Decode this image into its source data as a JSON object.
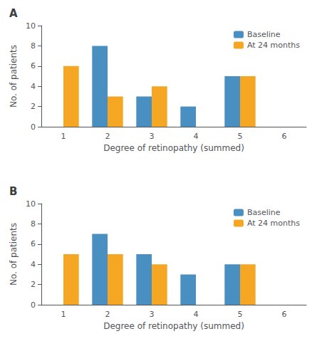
{
  "chart_data": [
    {
      "type": "bar",
      "title": "A",
      "categories": [
        "1",
        "2",
        "3",
        "4",
        "5",
        "6"
      ],
      "series": [
        {
          "name": "Baseline",
          "color": "#4a8fc2",
          "values": [
            0,
            8,
            3,
            2,
            5,
            0
          ]
        },
        {
          "name": "At 24 months",
          "color": "#f5a623",
          "values": [
            6,
            3,
            4,
            0,
            5,
            0
          ]
        }
      ],
      "xlabel": "Degree of retinopathy (summed)",
      "ylabel": "No. of patients",
      "ylim": [
        0,
        10
      ],
      "yticks": [
        0,
        2,
        4,
        6,
        8,
        10
      ],
      "grid": false,
      "legend": "upper right"
    },
    {
      "type": "bar",
      "title": "B",
      "categories": [
        "1",
        "2",
        "3",
        "4",
        "5",
        "6"
      ],
      "series": [
        {
          "name": "Baseline",
          "color": "#4a8fc2",
          "values": [
            0,
            7,
            5,
            3,
            4,
            0
          ]
        },
        {
          "name": "At 24 months",
          "color": "#f5a623",
          "values": [
            5,
            5,
            4,
            0,
            4,
            0
          ]
        }
      ],
      "xlabel": "Degree of retinopathy (summed)",
      "ylabel": "No. of patients",
      "ylim": [
        0,
        10
      ],
      "yticks": [
        0,
        2,
        4,
        6,
        8,
        10
      ],
      "grid": false,
      "legend": "upper right"
    }
  ]
}
